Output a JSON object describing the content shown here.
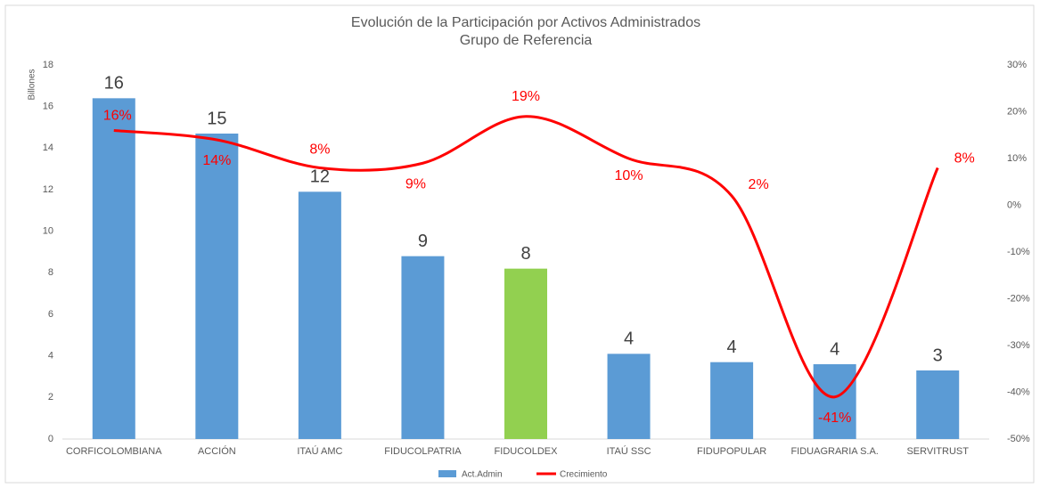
{
  "chart_data": {
    "type": "bar-line",
    "title": [
      "Evolución  de la Participación por Activos Administrados",
      "Grupo de Referencia"
    ],
    "y_label": "Billones",
    "categories": [
      "CORFICOLOMBIANA",
      "ACCIÓN",
      "ITAÚ AMC",
      "FIDUCOLPATRIA",
      "FIDUCOLDEX",
      "ITAÚ SSC",
      "FIDUPOPULAR",
      "FIDUAGRARIA S.A.",
      "SERVITRUST"
    ],
    "series": [
      {
        "name": "Act.Admin",
        "type": "bar",
        "color": "#5b9bd5",
        "colors": [
          "#5b9bd5",
          "#5b9bd5",
          "#5b9bd5",
          "#5b9bd5",
          "#92d050",
          "#5b9bd5",
          "#5b9bd5",
          "#5b9bd5",
          "#5b9bd5"
        ],
        "values": [
          16.4,
          14.7,
          11.9,
          8.8,
          8.2,
          4.1,
          3.7,
          3.6,
          3.3
        ],
        "value_labels": [
          "16",
          "15",
          "12",
          "9",
          "8",
          "4",
          "4",
          "4",
          "3"
        ]
      },
      {
        "name": "Crecimiento",
        "type": "line",
        "axis": "y2",
        "color": "#ff0000",
        "values": [
          16,
          14,
          8,
          9,
          19,
          10,
          2,
          -41,
          8
        ],
        "value_labels": [
          "16%",
          "14%",
          "8%",
          "9%",
          "19%",
          "10%",
          "2%",
          "-41%",
          "8%"
        ]
      }
    ],
    "ylim": [
      0,
      18
    ],
    "yticks": [
      0,
      2,
      4,
      6,
      8,
      10,
      12,
      14,
      16,
      18
    ],
    "y2lim": [
      -50,
      30
    ],
    "y2ticks": [
      {
        "value": -50,
        "label": "-50%"
      },
      {
        "value": -40,
        "label": "-40%"
      },
      {
        "value": -30,
        "label": "-30%"
      },
      {
        "value": -20,
        "label": "-20%"
      },
      {
        "value": -10,
        "label": "-10%"
      },
      {
        "value": 0,
        "label": "0%"
      },
      {
        "value": 10,
        "label": "10%"
      },
      {
        "value": 20,
        "label": "20%"
      },
      {
        "value": 30,
        "label": "30%"
      }
    ],
    "legend": "bottom"
  }
}
